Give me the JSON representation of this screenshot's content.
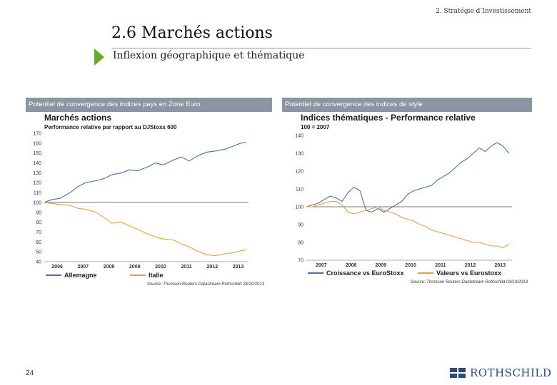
{
  "header": {
    "section_label": "2. Stratégie d’Investissement",
    "title": "2.6 Marchés actions",
    "subtitle": "Inflexion géographique et thématique"
  },
  "panels": {
    "left_label": "Potentiel de convergence des indices pays en Zone Euro",
    "right_label": "Potentiel de convergence des indices de style"
  },
  "footer": {
    "page_number": "24",
    "logo_text": "ROTHSCHILD"
  },
  "colors": {
    "blue": "#4a74a8",
    "orange": "#e6a139",
    "accent": "#6aaa2a",
    "bar": "#8c96a3"
  },
  "chart_data": [
    {
      "type": "line",
      "title": "Marchés actions",
      "subtitle": "Performance relative par rapport au DJStoxx 600",
      "x_ticks": [
        "2006",
        "2007",
        "2008",
        "2009",
        "2010",
        "2011",
        "2012",
        "2013"
      ],
      "xlim": [
        2006.0,
        2013.9
      ],
      "ylim": [
        40,
        170
      ],
      "y_ticks": [
        40,
        50,
        60,
        70,
        80,
        90,
        100,
        110,
        120,
        130,
        140,
        150,
        160,
        170
      ],
      "reference_line": 100,
      "legend_position": "bottom",
      "source": "Source: Thomson Reuters Datastream Rothschild 28/10/2013",
      "series": [
        {
          "name": "Allemagne",
          "color": "#4a74a8",
          "x": [
            2006.0,
            2006.3,
            2006.6,
            2007.0,
            2007.3,
            2007.6,
            2008.0,
            2008.3,
            2008.6,
            2009.0,
            2009.3,
            2009.6,
            2010.0,
            2010.3,
            2010.6,
            2011.0,
            2011.3,
            2011.6,
            2012.0,
            2012.3,
            2012.6,
            2013.0,
            2013.3,
            2013.6,
            2013.8
          ],
          "values": [
            100,
            103,
            104,
            110,
            116,
            120,
            122,
            124,
            128,
            130,
            133,
            132,
            136,
            140,
            138,
            143,
            146,
            142,
            148,
            151,
            152,
            154,
            157,
            160,
            161
          ]
        },
        {
          "name": "Italie",
          "color": "#e6a139",
          "x": [
            2006.0,
            2006.3,
            2006.6,
            2007.0,
            2007.3,
            2007.6,
            2008.0,
            2008.3,
            2008.6,
            2009.0,
            2009.3,
            2009.6,
            2010.0,
            2010.3,
            2010.6,
            2011.0,
            2011.3,
            2011.6,
            2012.0,
            2012.3,
            2012.6,
            2013.0,
            2013.3,
            2013.6,
            2013.8
          ],
          "values": [
            100,
            99,
            98,
            97,
            94,
            93,
            90,
            85,
            79,
            80,
            76,
            73,
            68,
            65,
            63,
            62,
            58,
            55,
            50,
            47,
            46,
            48,
            49,
            51,
            52
          ]
        }
      ]
    },
    {
      "type": "line",
      "title": "Indices thématiques - Performance relative",
      "subtitle": "100 = 2007",
      "x_ticks": [
        "2007",
        "2008",
        "2009",
        "2010",
        "2011",
        "2012",
        "2013"
      ],
      "xlim": [
        2007.0,
        2013.9
      ],
      "ylim": [
        70,
        140
      ],
      "y_ticks": [
        70,
        80,
        90,
        100,
        110,
        120,
        130,
        140
      ],
      "reference_line": 100,
      "legend_position": "bottom",
      "source": "Source: Thomson Reuters Datastream Rothschild 03/10/2013",
      "series": [
        {
          "name": "Croissance vs EuroStoxx",
          "color": "#4a74a8",
          "x": [
            2007.0,
            2007.2,
            2007.4,
            2007.6,
            2007.8,
            2008.0,
            2008.2,
            2008.4,
            2008.6,
            2008.8,
            2009.0,
            2009.2,
            2009.4,
            2009.6,
            2009.8,
            2010.0,
            2010.2,
            2010.4,
            2010.6,
            2010.8,
            2011.0,
            2011.2,
            2011.4,
            2011.6,
            2011.8,
            2012.0,
            2012.2,
            2012.4,
            2012.6,
            2012.8,
            2013.0,
            2013.2,
            2013.4,
            2013.6,
            2013.8
          ],
          "values": [
            100,
            101,
            102,
            104,
            106,
            105,
            103,
            108,
            111,
            109,
            98,
            97,
            99,
            97,
            99,
            101,
            103,
            107,
            109,
            110,
            111,
            112,
            115,
            117,
            119,
            122,
            125,
            127,
            130,
            133,
            131,
            134,
            136,
            134,
            130
          ]
        },
        {
          "name": "Valeurs vs Eurostoxx",
          "color": "#e6a139",
          "x": [
            2007.0,
            2007.2,
            2007.4,
            2007.6,
            2007.8,
            2008.0,
            2008.2,
            2008.4,
            2008.6,
            2008.8,
            2009.0,
            2009.2,
            2009.4,
            2009.6,
            2009.8,
            2010.0,
            2010.2,
            2010.4,
            2010.6,
            2010.8,
            2011.0,
            2011.2,
            2011.4,
            2011.6,
            2011.8,
            2012.0,
            2012.2,
            2012.4,
            2012.6,
            2012.8,
            2013.0,
            2013.2,
            2013.4,
            2013.6,
            2013.8
          ],
          "values": [
            100,
            100,
            101,
            102,
            103,
            103,
            101,
            97,
            96,
            97,
            98,
            99,
            100,
            98,
            97,
            96,
            94,
            93,
            92,
            90,
            89,
            87,
            86,
            85,
            84,
            83,
            82,
            81,
            80,
            80,
            79,
            78,
            78,
            77,
            79
          ]
        }
      ]
    }
  ]
}
